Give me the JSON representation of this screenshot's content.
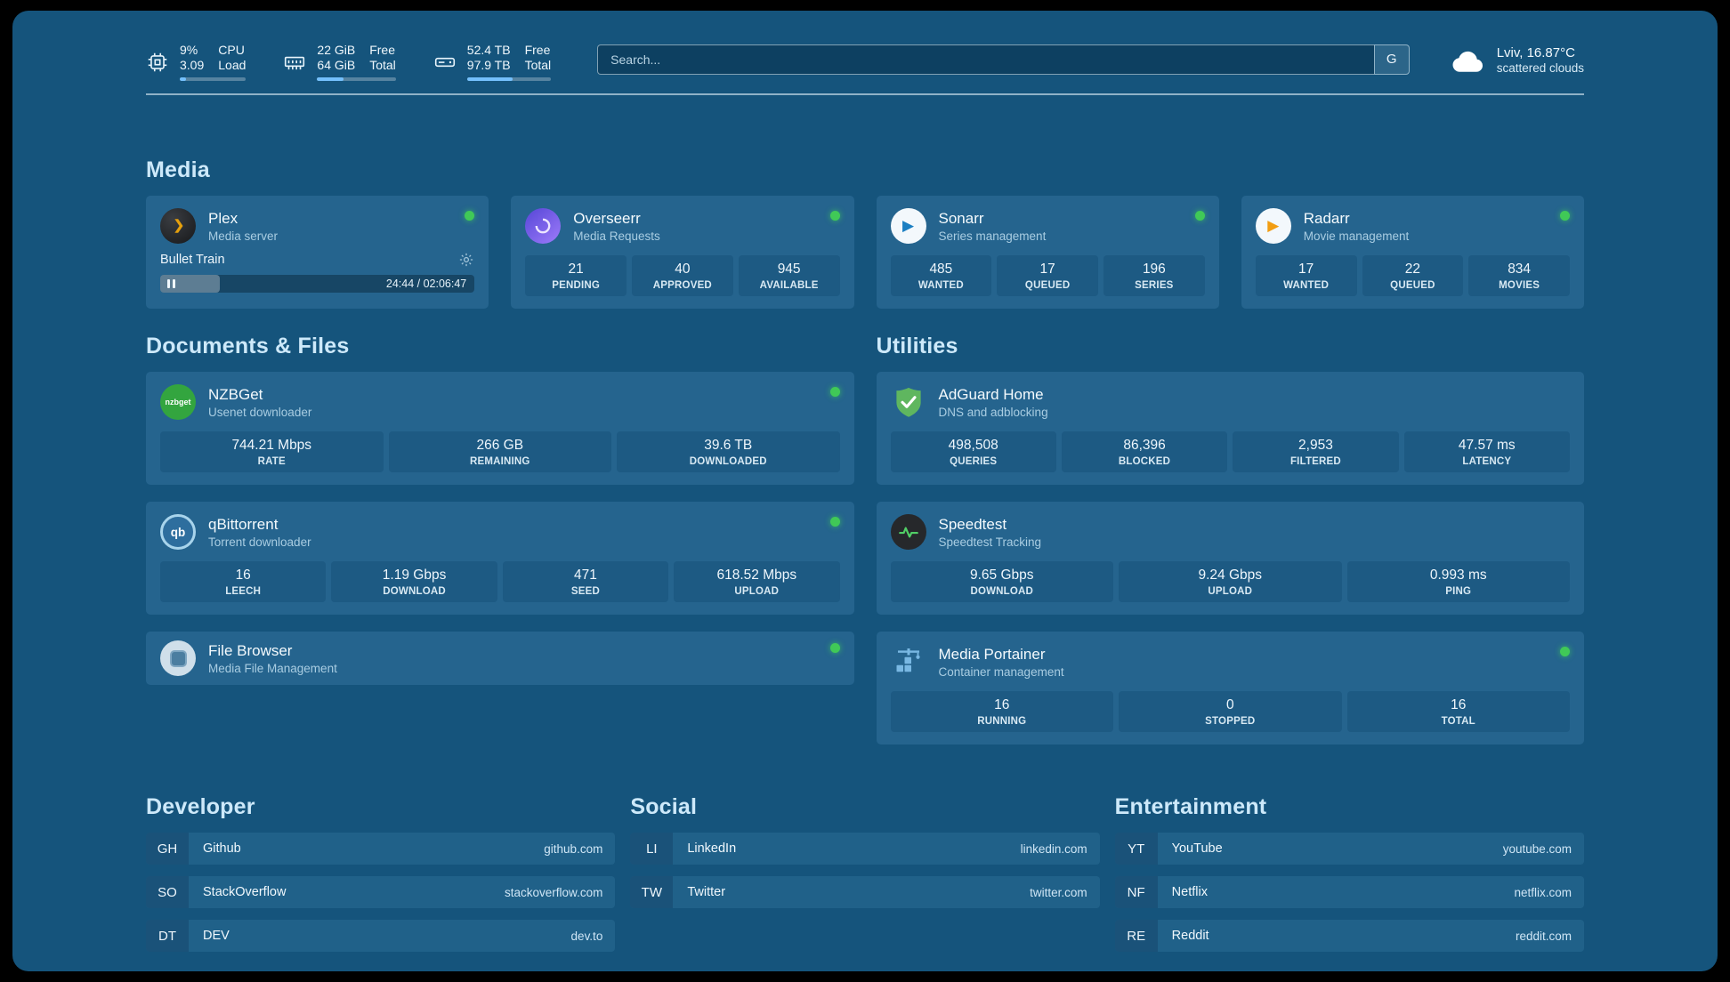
{
  "colors": {
    "background": "#15547c",
    "card": "#25648e",
    "accent_blue": "#74c0fc",
    "status_online": "#40c957"
  },
  "header": {
    "stats": [
      {
        "value_top": "9%",
        "value_bottom": "3.09",
        "label_top": "CPU",
        "label_bottom": "Load",
        "progress_percent": 9
      },
      {
        "value_top": "22 GiB",
        "value_bottom": "64 GiB",
        "label_top": "Free",
        "label_bottom": "Total",
        "progress_percent": 34
      },
      {
        "value_top": "52.4 TB",
        "value_bottom": "97.9 TB",
        "label_top": "Free",
        "label_bottom": "Total",
        "progress_percent": 54
      }
    ],
    "search": {
      "placeholder": "Search...",
      "button_label": "G"
    },
    "weather": {
      "location": "Lviv, 16.87°C",
      "condition": "scattered clouds"
    }
  },
  "icons": {
    "sonarr_glyph": "▶",
    "radarr_glyph": "▶",
    "qbittorrent_glyph": "qb",
    "nzbget_glyph": "nzbget"
  },
  "sections": {
    "media": {
      "title": "Media",
      "apps": [
        {
          "name": "Plex",
          "subtitle": "Media server",
          "online": true,
          "player": {
            "title": "Bullet Train",
            "time": "24:44 / 02:06:47",
            "progress_percent": 19
          }
        },
        {
          "name": "Overseerr",
          "subtitle": "Media Requests",
          "online": true,
          "stats": [
            {
              "value": "21",
              "label": "PENDING"
            },
            {
              "value": "40",
              "label": "APPROVED"
            },
            {
              "value": "945",
              "label": "AVAILABLE"
            }
          ]
        },
        {
          "name": "Sonarr",
          "subtitle": "Series management",
          "online": true,
          "stats": [
            {
              "value": "485",
              "label": "WANTED"
            },
            {
              "value": "17",
              "label": "QUEUED"
            },
            {
              "value": "196",
              "label": "SERIES"
            }
          ]
        },
        {
          "name": "Radarr",
          "subtitle": "Movie management",
          "online": true,
          "stats": [
            {
              "value": "17",
              "label": "WANTED"
            },
            {
              "value": "22",
              "label": "QUEUED"
            },
            {
              "value": "834",
              "label": "MOVIES"
            }
          ]
        }
      ]
    },
    "documents": {
      "title": "Documents & Files",
      "apps": [
        {
          "name": "NZBGet",
          "subtitle": "Usenet downloader",
          "online": true,
          "stats": [
            {
              "value": "744.21 Mbps",
              "label": "RATE"
            },
            {
              "value": "266 GB",
              "label": "REMAINING"
            },
            {
              "value": "39.6 TB",
              "label": "DOWNLOADED"
            }
          ]
        },
        {
          "name": "qBittorrent",
          "subtitle": "Torrent downloader",
          "online": true,
          "stats": [
            {
              "value": "16",
              "label": "LEECH"
            },
            {
              "value": "1.19 Gbps",
              "label": "DOWNLOAD"
            },
            {
              "value": "471",
              "label": "SEED"
            },
            {
              "value": "618.52 Mbps",
              "label": "UPLOAD"
            }
          ]
        },
        {
          "name": "File Browser",
          "subtitle": "Media File Management",
          "online": true,
          "stats": []
        }
      ]
    },
    "utilities": {
      "title": "Utilities",
      "apps": [
        {
          "name": "AdGuard Home",
          "subtitle": "DNS and adblocking",
          "stats": [
            {
              "value": "498,508",
              "label": "QUERIES"
            },
            {
              "value": "86,396",
              "label": "BLOCKED"
            },
            {
              "value": "2,953",
              "label": "FILTERED"
            },
            {
              "value": "47.57 ms",
              "label": "LATENCY"
            }
          ]
        },
        {
          "name": "Speedtest",
          "subtitle": "Speedtest Tracking",
          "stats": [
            {
              "value": "9.65 Gbps",
              "label": "DOWNLOAD"
            },
            {
              "value": "9.24 Gbps",
              "label": "UPLOAD"
            },
            {
              "value": "0.993 ms",
              "label": "PING"
            }
          ]
        },
        {
          "name": "Media Portainer",
          "subtitle": "Container management",
          "online": true,
          "stats": [
            {
              "value": "16",
              "label": "RUNNING"
            },
            {
              "value": "0",
              "label": "STOPPED"
            },
            {
              "value": "16",
              "label": "TOTAL"
            }
          ]
        }
      ]
    },
    "bookmarks": [
      {
        "title": "Developer",
        "items": [
          {
            "abbr": "GH",
            "name": "Github",
            "url": "github.com"
          },
          {
            "abbr": "SO",
            "name": "StackOverflow",
            "url": "stackoverflow.com"
          },
          {
            "abbr": "DT",
            "name": "DEV",
            "url": "dev.to"
          }
        ]
      },
      {
        "title": "Social",
        "items": [
          {
            "abbr": "LI",
            "name": "LinkedIn",
            "url": "linkedin.com"
          },
          {
            "abbr": "TW",
            "name": "Twitter",
            "url": "twitter.com"
          }
        ]
      },
      {
        "title": "Entertainment",
        "items": [
          {
            "abbr": "YT",
            "name": "YouTube",
            "url": "youtube.com"
          },
          {
            "abbr": "NF",
            "name": "Netflix",
            "url": "netflix.com"
          },
          {
            "abbr": "RE",
            "name": "Reddit",
            "url": "reddit.com"
          }
        ]
      }
    ]
  }
}
